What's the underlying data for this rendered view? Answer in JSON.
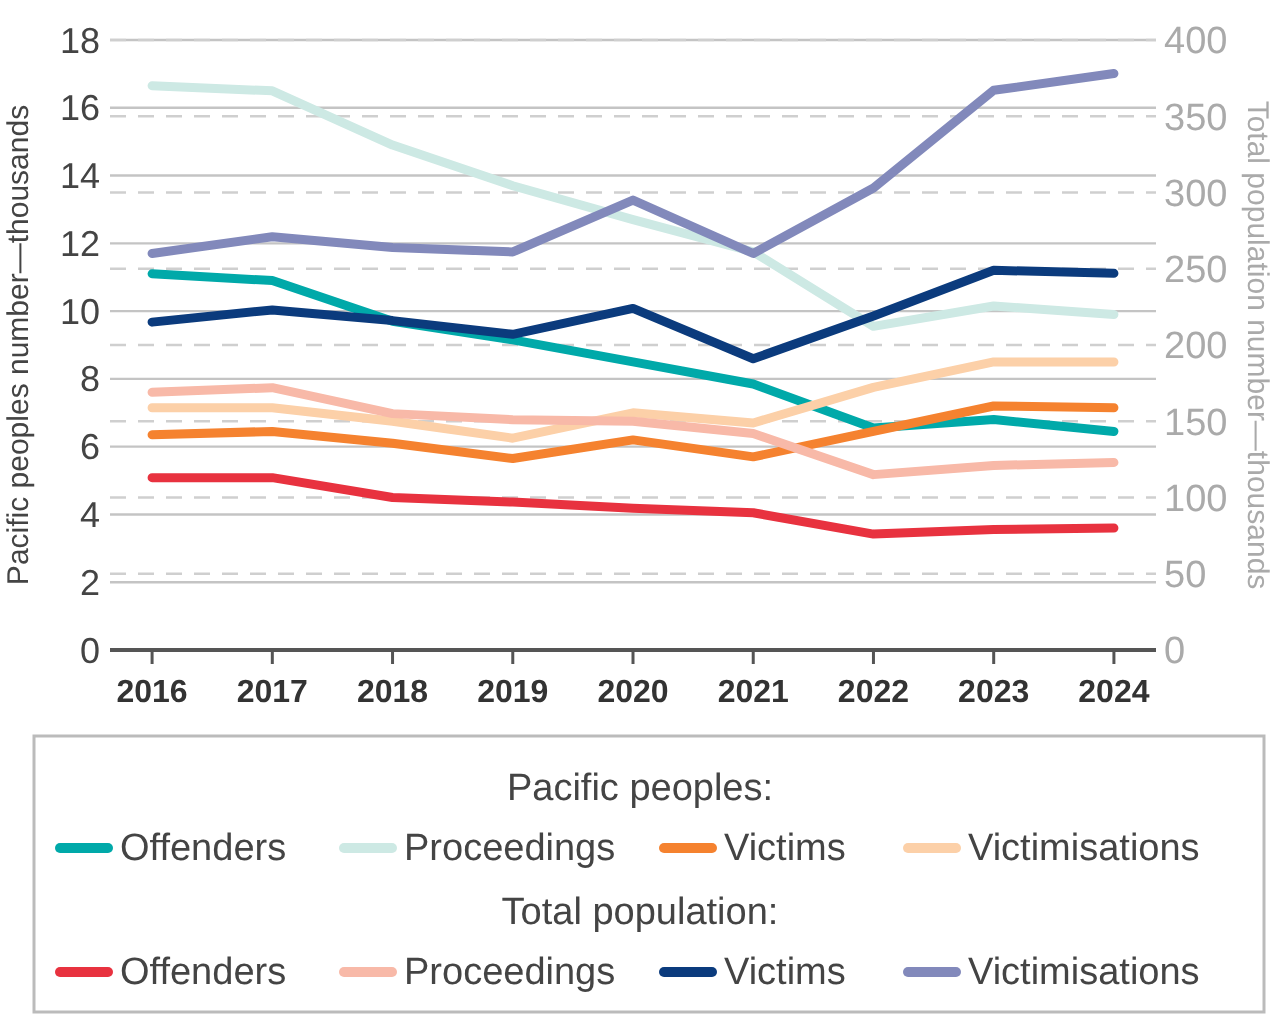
{
  "chart_data": {
    "type": "line",
    "ylabel": "Pacific peoples number—thousands",
    "y2label": "Total population number—thousands",
    "categories": [
      "2016",
      "2017",
      "2018",
      "2019",
      "2020",
      "2021",
      "2022",
      "2023",
      "2024"
    ],
    "ylim": [
      0,
      18
    ],
    "yticks": [
      0,
      2,
      4,
      6,
      8,
      10,
      12,
      14,
      16,
      18
    ],
    "y2lim": [
      0,
      400
    ],
    "y2ticks": [
      0,
      50,
      100,
      150,
      200,
      250,
      300,
      350,
      400
    ],
    "grid": true,
    "legend": "bottom",
    "annotations": [
      "Pacific peoples:",
      "Total population:"
    ],
    "series": [
      {
        "name": "Offenders",
        "color": "#00a9a9",
        "values": [
          11.1,
          10.9,
          9.7,
          9.15,
          8.5,
          7.85,
          6.55,
          6.8,
          6.45
        ]
      },
      {
        "name": "Proceedings",
        "color": "#cde9e4",
        "values": [
          16.65,
          16.5,
          14.9,
          13.7,
          12.7,
          11.75,
          9.55,
          10.15,
          9.9
        ]
      },
      {
        "name": "Victims",
        "color": "#f5822f",
        "values": [
          6.35,
          6.45,
          6.1,
          5.65,
          6.2,
          5.7,
          6.45,
          7.2,
          7.15
        ]
      },
      {
        "name": "Victimisations",
        "color": "#fcd0a8",
        "values": [
          7.15,
          7.15,
          6.75,
          6.25,
          7.0,
          6.7,
          7.75,
          8.5,
          8.5
        ]
      },
      {
        "name": "Offenders",
        "color": "#e8323f",
        "axis": "y2",
        "values": [
          113,
          113,
          100,
          97,
          93,
          90,
          76,
          79,
          80
        ]
      },
      {
        "name": "Proceedings",
        "color": "#f8b9a8",
        "axis": "y2",
        "values": [
          169,
          172,
          155,
          151,
          150,
          142,
          115,
          121,
          123
        ]
      },
      {
        "name": "Victims",
        "color": "#0b3b7d",
        "axis": "y2",
        "values": [
          215,
          223,
          216,
          207,
          224,
          191,
          219,
          249,
          247
        ]
      },
      {
        "name": "Victimisations",
        "color": "#8289bb",
        "axis": "y2",
        "values": [
          260,
          271,
          264,
          261,
          295,
          260,
          303,
          367,
          378
        ]
      }
    ]
  }
}
